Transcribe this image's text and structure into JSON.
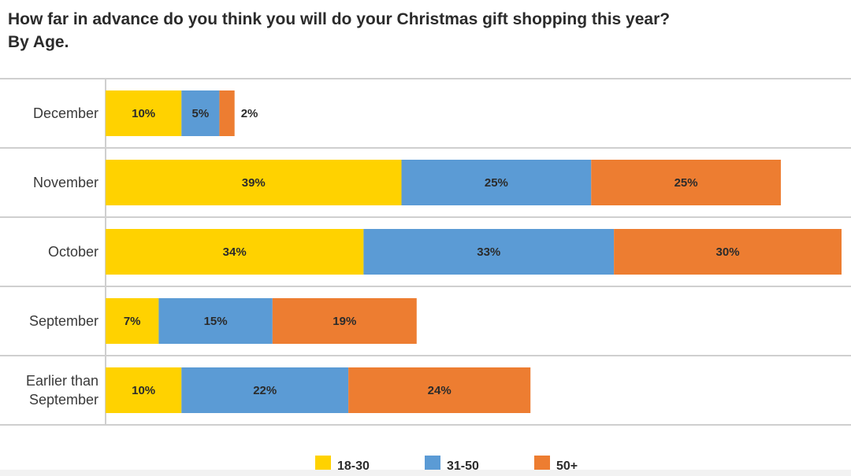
{
  "chart_data": {
    "type": "bar",
    "orientation": "horizontal",
    "stacked": true,
    "title": "How far in advance do you think you will do your Christmas gift shopping this year?",
    "subtitle": "By Age.",
    "categories": [
      "December",
      "November",
      "October",
      "September",
      "Earlier than September"
    ],
    "category_lines": [
      [
        "December"
      ],
      [
        "November"
      ],
      [
        "October"
      ],
      [
        "September"
      ],
      [
        "Earlier than",
        "September"
      ]
    ],
    "series": [
      {
        "name": "18-30",
        "color": "#ffd200",
        "values": [
          10,
          39,
          34,
          7,
          10
        ]
      },
      {
        "name": "31-50",
        "color": "#5b9bd5",
        "values": [
          5,
          25,
          33,
          15,
          22
        ]
      },
      {
        "name": "50+",
        "color": "#ed7d31",
        "values": [
          2,
          25,
          30,
          19,
          24
        ]
      }
    ],
    "value_suffix": "%",
    "xlim": [
      0,
      97
    ],
    "grid": true,
    "legend_position": "bottom-center"
  }
}
